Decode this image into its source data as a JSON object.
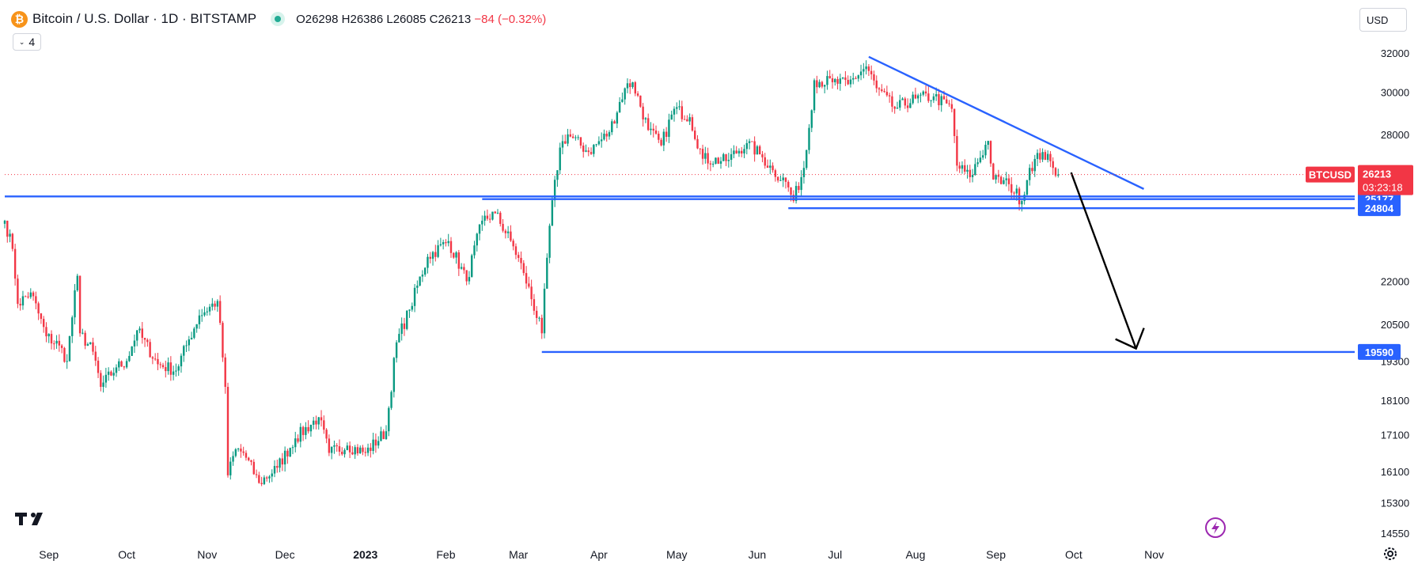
{
  "header": {
    "symbol_title": "Bitcoin / U.S. Dollar · 1D · BITSTAMP",
    "logo_glyph": "₿",
    "open_label": "O",
    "open": "26298",
    "high_label": "H",
    "high": "26386",
    "low_label": "L",
    "low": "26085",
    "close_label": "C",
    "close": "26213",
    "change": "−84 (−0.32%)",
    "indicators_count": "4"
  },
  "toolbar": {
    "currency": "USD"
  },
  "icons": {
    "logo": "bitcoin-logo-icon",
    "status": "market-status-dot-icon",
    "indicator_toggle": "chevron-down-icon",
    "brand": "tradingview-logo-icon",
    "lightning": "lightning-icon",
    "settings": "gear-icon"
  },
  "colors": {
    "up": "#089981",
    "down": "#f23645",
    "drawing": "#2962ff",
    "price_badge": "#f23645",
    "level_badge": "#2962ff",
    "arrow": "#000000",
    "lightning": "#9c27b0"
  },
  "chart_data": {
    "type": "candlestick",
    "symbol": "BTCUSD",
    "interval": "1D",
    "exchange": "BITSTAMP",
    "y_axis_ticks": [
      32000,
      30000,
      28000,
      25288,
      25177,
      24804,
      22000,
      20500,
      19590,
      18100,
      17100,
      16100,
      15300,
      14550
    ],
    "y_tick_labels": [
      "32000",
      "30000",
      "28000",
      "22000",
      "20500",
      "19300",
      "18100",
      "17100",
      "16100",
      "15300",
      "14550"
    ],
    "x_tick_labels": [
      "Sep",
      "Oct",
      "Nov",
      "Dec",
      "2023",
      "Feb",
      "Mar",
      "Apr",
      "May",
      "Jun",
      "Jul",
      "Aug",
      "Sep",
      "Oct",
      "Nov"
    ],
    "price_range": [
      14200,
      33500
    ],
    "scale": "log",
    "current_price": {
      "symbol": "BTCUSD",
      "value": "26213",
      "countdown": "03:23:18"
    },
    "level_labels": [
      "25288",
      "25177",
      "24804",
      "19590"
    ],
    "close_series": [
      {
        "date": "2022-08-15",
        "close": 24300
      },
      {
        "date": "2022-08-18",
        "close": 23200
      },
      {
        "date": "2022-08-20",
        "close": 21200
      },
      {
        "date": "2022-08-25",
        "close": 21600
      },
      {
        "date": "2022-08-31",
        "close": 20100
      },
      {
        "date": "2022-09-05",
        "close": 19800
      },
      {
        "date": "2022-09-08",
        "close": 19300
      },
      {
        "date": "2022-09-12",
        "close": 22200
      },
      {
        "date": "2022-09-13",
        "close": 20200
      },
      {
        "date": "2022-09-18",
        "close": 19600
      },
      {
        "date": "2022-09-21",
        "close": 18500
      },
      {
        "date": "2022-09-27",
        "close": 19100
      },
      {
        "date": "2022-10-01",
        "close": 19300
      },
      {
        "date": "2022-10-05",
        "close": 20300
      },
      {
        "date": "2022-10-13",
        "close": 19200
      },
      {
        "date": "2022-10-20",
        "close": 19000
      },
      {
        "date": "2022-10-25",
        "close": 20000
      },
      {
        "date": "2022-10-29",
        "close": 20800
      },
      {
        "date": "2022-11-05",
        "close": 21300
      },
      {
        "date": "2022-11-08",
        "close": 18500
      },
      {
        "date": "2022-11-09",
        "close": 16000
      },
      {
        "date": "2022-11-12",
        "close": 16700
      },
      {
        "date": "2022-11-15",
        "close": 16600
      },
      {
        "date": "2022-11-21",
        "close": 15800
      },
      {
        "date": "2022-11-28",
        "close": 16200
      },
      {
        "date": "2022-12-05",
        "close": 17000
      },
      {
        "date": "2022-12-14",
        "close": 17600
      },
      {
        "date": "2022-12-18",
        "close": 16600
      },
      {
        "date": "2022-12-25",
        "close": 16800
      },
      {
        "date": "2023-01-01",
        "close": 16600
      },
      {
        "date": "2023-01-09",
        "close": 17200
      },
      {
        "date": "2023-01-13",
        "close": 19900
      },
      {
        "date": "2023-01-18",
        "close": 21000
      },
      {
        "date": "2023-01-25",
        "close": 22900
      },
      {
        "date": "2023-02-02",
        "close": 23500
      },
      {
        "date": "2023-02-09",
        "close": 22000
      },
      {
        "date": "2023-02-15",
        "close": 24300
      },
      {
        "date": "2023-02-20",
        "close": 24600
      },
      {
        "date": "2023-02-27",
        "close": 23300
      },
      {
        "date": "2023-03-03",
        "close": 22300
      },
      {
        "date": "2023-03-10",
        "close": 20200
      },
      {
        "date": "2023-03-13",
        "close": 24100
      },
      {
        "date": "2023-03-17",
        "close": 27400
      },
      {
        "date": "2023-03-20",
        "close": 28000
      },
      {
        "date": "2023-03-28",
        "close": 27200
      },
      {
        "date": "2023-04-05",
        "close": 28100
      },
      {
        "date": "2023-04-11",
        "close": 30200
      },
      {
        "date": "2023-04-14",
        "close": 30500
      },
      {
        "date": "2023-04-20",
        "close": 28200
      },
      {
        "date": "2023-04-25",
        "close": 27500
      },
      {
        "date": "2023-04-30",
        "close": 29200
      },
      {
        "date": "2023-05-06",
        "close": 28800
      },
      {
        "date": "2023-05-11",
        "close": 26900
      },
      {
        "date": "2023-05-20",
        "close": 26800
      },
      {
        "date": "2023-05-28",
        "close": 27600
      },
      {
        "date": "2023-06-02",
        "close": 27100
      },
      {
        "date": "2023-06-07",
        "close": 26400
      },
      {
        "date": "2023-06-12",
        "close": 25900
      },
      {
        "date": "2023-06-15",
        "close": 25100
      },
      {
        "date": "2023-06-19",
        "close": 26500
      },
      {
        "date": "2023-06-21",
        "close": 28300
      },
      {
        "date": "2023-06-23",
        "close": 30600
      },
      {
        "date": "2023-06-30",
        "close": 30500
      },
      {
        "date": "2023-07-06",
        "close": 30400
      },
      {
        "date": "2023-07-13",
        "close": 31300
      },
      {
        "date": "2023-07-17",
        "close": 30200
      },
      {
        "date": "2023-07-24",
        "close": 29200
      },
      {
        "date": "2023-08-01",
        "close": 29700
      },
      {
        "date": "2023-08-08",
        "close": 29800
      },
      {
        "date": "2023-08-15",
        "close": 29200
      },
      {
        "date": "2023-08-17",
        "close": 26600
      },
      {
        "date": "2023-08-22",
        "close": 26100
      },
      {
        "date": "2023-08-29",
        "close": 27700
      },
      {
        "date": "2023-08-31",
        "close": 26000
      },
      {
        "date": "2023-09-06",
        "close": 25800
      },
      {
        "date": "2023-09-11",
        "close": 25100
      },
      {
        "date": "2023-09-14",
        "close": 26500
      },
      {
        "date": "2023-09-19",
        "close": 27200
      },
      {
        "date": "2023-09-23",
        "close": 26500
      },
      {
        "date": "2023-09-25",
        "close": 26213
      }
    ],
    "drawings": {
      "trendline": {
        "from": {
          "date": "2023-07-14",
          "price": 31800
        },
        "to": {
          "date": "2023-10-28",
          "price": 25600
        }
      },
      "support_line_1": {
        "price": 25288,
        "from_date": "2022-08-15"
      },
      "support_line_2": {
        "price": 25177,
        "from_date": "2023-02-15"
      },
      "support_line_3": {
        "price": 24804,
        "from_date": "2023-06-13"
      },
      "target_line": {
        "price": 19590,
        "from_date": "2023-03-10"
      },
      "arrow": {
        "from": {
          "date": "2023-09-30",
          "price": 26300
        },
        "to": {
          "date": "2023-10-25",
          "price": 19700
        }
      }
    },
    "grid": false
  }
}
